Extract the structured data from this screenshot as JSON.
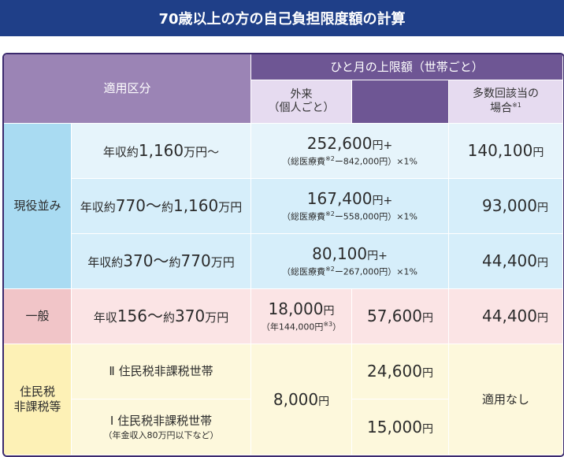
{
  "title": "70歳以上の方の自己負担限度額の計算",
  "header": {
    "category": "適用区分",
    "monthly_limit": "ひと月の上限額（世帯ごと）",
    "outpatient": "外来",
    "outpatient_sub": "（個人ごと）",
    "multiple": "多数回該当の",
    "multiple_sub": "場合",
    "multiple_note": "※1"
  },
  "groups": {
    "active": "現役並み",
    "general": "一般",
    "tax_exempt_1": "住民税",
    "tax_exempt_2": "非課税等"
  },
  "rows": [
    {
      "income_pre": "年収約",
      "income_big": "1,160",
      "income_post": "万円〜",
      "base": "252,600",
      "base_unit": "円+",
      "formula_pre": "（総医療費",
      "formula_note": "※2",
      "formula_post": "ー842,000円）×1%",
      "multi": "140,100",
      "multi_unit": "円"
    },
    {
      "income_pre": "年収約",
      "income_big": "770〜",
      "income_mid": "約",
      "income_big2": "1,160",
      "income_post": "万円",
      "base": "167,400",
      "base_unit": "円+",
      "formula_pre": "（総医療費",
      "formula_note": "※2",
      "formula_post": "ー558,000円）×1%",
      "multi": "93,000",
      "multi_unit": "円"
    },
    {
      "income_pre": "年収約",
      "income_big": "370〜",
      "income_mid": "約",
      "income_big2": "770",
      "income_post": "万円",
      "base": "80,100",
      "base_unit": "円+",
      "formula_pre": "（総医療費",
      "formula_note": "※2",
      "formula_post": "ー267,000円）×1%",
      "multi": "44,400",
      "multi_unit": "円"
    }
  ],
  "general_row": {
    "income_pre": "年収",
    "income_big": "156〜",
    "income_mid": "約",
    "income_big2": "370",
    "income_post": "万円",
    "outpatient": "18,000",
    "outpatient_unit": "円",
    "outpatient_note_pre": "（年144,000円",
    "outpatient_note_sup": "※3",
    "outpatient_note_post": "）",
    "household": "57,600",
    "household_unit": "円",
    "multi": "44,400",
    "multi_unit": "円"
  },
  "exempt": {
    "row2_label": "Ⅱ 住民税非課税世帯",
    "row1_label": "Ⅰ 住民税非課税世帯",
    "row1_sub": "（年金収入80万円以下など）",
    "outpatient": "8,000",
    "outpatient_unit": "円",
    "row2_household": "24,600",
    "row2_unit": "円",
    "row1_household": "15,000",
    "row1_unit": "円",
    "multi": "適用なし"
  }
}
